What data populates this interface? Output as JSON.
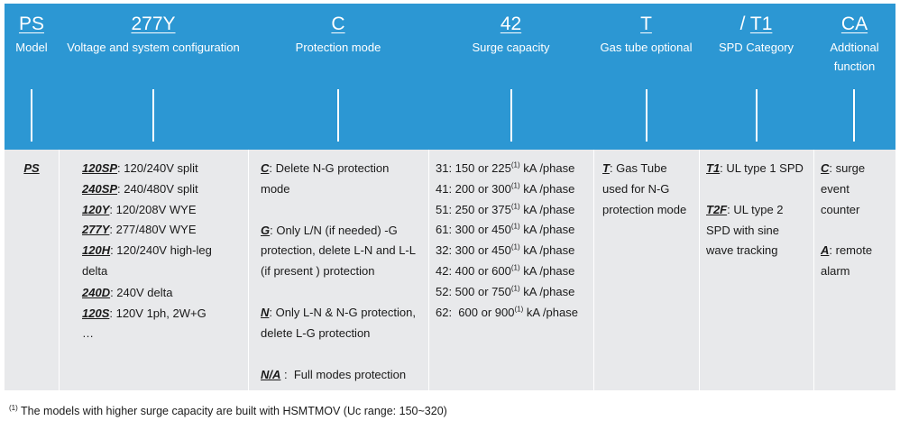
{
  "header": [
    {
      "code": "PS",
      "label": "Model"
    },
    {
      "code": "277Y",
      "label": "Voltage and system configuration"
    },
    {
      "code": "C",
      "label": "Protection mode"
    },
    {
      "code": "42",
      "label": "Surge capacity"
    },
    {
      "code": "T",
      "label": "Gas tube optional"
    },
    {
      "code_prefix": "/ ",
      "code": "T1",
      "label": "SPD Category"
    },
    {
      "code": "CA",
      "label_lines": [
        "Addtional",
        "function"
      ]
    }
  ],
  "model": {
    "code": "PS"
  },
  "voltage": {
    "items": [
      {
        "code": "120SP",
        "text": ": 120/240V split"
      },
      {
        "code": "240SP",
        "text": ": 240/480V split"
      },
      {
        "code": "120Y",
        "text": ": 120/208V WYE"
      },
      {
        "code": "277Y",
        "text": ": 277/480V WYE"
      },
      {
        "code": "120H",
        "text": ":  120/240V high-leg",
        "cont": "delta"
      },
      {
        "code": "240D",
        "text": ": 240V delta"
      },
      {
        "code": "120S",
        "text": ": 120V 1ph, 2W+G"
      }
    ],
    "ellipsis": "…"
  },
  "protection": {
    "items": [
      {
        "code": "C",
        "lines": [
          ": Delete N-G protection",
          "mode"
        ]
      },
      {
        "code": "G",
        "lines": [
          ": Only L/N (if needed) -G",
          "protection, delete L-N and L-L",
          "(if present ) protection"
        ]
      },
      {
        "code": "N",
        "lines": [
          ": Only L-N & N-G protection,",
          "delete L-G protection"
        ]
      },
      {
        "code": "N/A",
        "lines": [
          " :  Full modes protection"
        ]
      }
    ]
  },
  "surge": {
    "sup": "(1)",
    "rows": [
      {
        "pre": "31: 150 or 225",
        "post": " kA /phase"
      },
      {
        "pre": "41: 200 or 300",
        "post": " kA /phase"
      },
      {
        "pre": "51: 250 or 375",
        "post": " kA /phase"
      },
      {
        "pre": "61: 300 or 450",
        "post": " kA /phase"
      },
      {
        "pre": "32: 300 or 450",
        "post": " kA /phase"
      },
      {
        "pre": "42: 400 or 600",
        "post": " kA /phase"
      },
      {
        "pre": "52: 500 or 750",
        "post": " kA /phase"
      },
      {
        "pre": "62:  600 or 900",
        "post": " kA /phase"
      }
    ]
  },
  "gastube": {
    "code": "T",
    "lines": [
      ": Gas Tube",
      "used for N-G",
      "protection mode"
    ]
  },
  "category": {
    "items": [
      {
        "code": "T1",
        "lines": [
          ": UL type 1 SPD"
        ]
      },
      {
        "code": "T2F",
        "lines": [
          ": UL type 2",
          "SPD with sine",
          "wave tracking"
        ]
      }
    ]
  },
  "additional": {
    "items": [
      {
        "code": "C",
        "lines": [
          ": surge",
          "event",
          "counter"
        ]
      },
      {
        "code": "A",
        "lines": [
          ": remote",
          "alarm"
        ]
      }
    ]
  },
  "footnote": {
    "sup": "(1)",
    "text": " The models with higher surge capacity are built with HSMTMOV (Uc range: 150~320)"
  }
}
